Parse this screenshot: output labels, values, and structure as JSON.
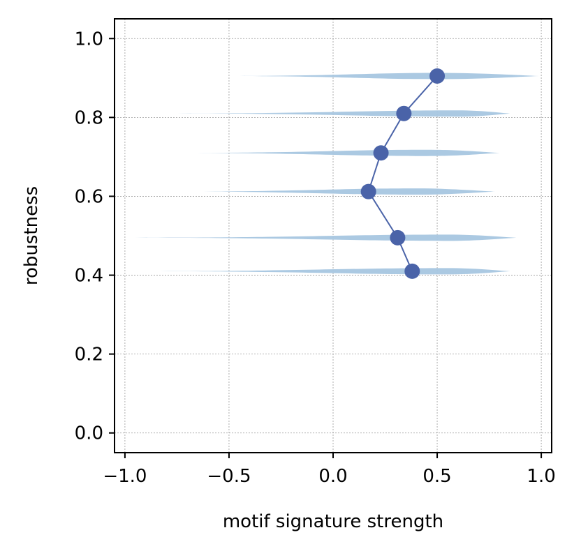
{
  "chart_data": {
    "type": "line",
    "title": "",
    "xlabel": "motif signature strength",
    "ylabel": "robustness",
    "xlim": [
      -1.05,
      1.05
    ],
    "ylim": [
      -0.05,
      1.05
    ],
    "xticks": [
      -1.0,
      -0.5,
      0.0,
      0.5,
      1.0
    ],
    "xtick_labels": [
      "−1.0",
      "−0.5",
      "0.0",
      "0.5",
      "1.0"
    ],
    "yticks": [
      0.0,
      0.2,
      0.4,
      0.6,
      0.8,
      1.0
    ],
    "ytick_labels": [
      "0.0",
      "0.2",
      "0.4",
      "0.6",
      "0.8",
      "1.0"
    ],
    "grid": true,
    "series": [
      {
        "marker": "circle",
        "color": "#4a63a8",
        "points": [
          {
            "x": 0.38,
            "y": 0.41
          },
          {
            "x": 0.31,
            "y": 0.495
          },
          {
            "x": 0.17,
            "y": 0.612
          },
          {
            "x": 0.23,
            "y": 0.71
          },
          {
            "x": 0.34,
            "y": 0.81
          },
          {
            "x": 0.5,
            "y": 0.905
          }
        ]
      }
    ],
    "violins": {
      "color": "#a7c6e0",
      "items": [
        {
          "y": 0.41,
          "min": -0.93,
          "max": 0.85,
          "mode": 0.55
        },
        {
          "y": 0.495,
          "min": -0.95,
          "max": 0.88,
          "mode": 0.55
        },
        {
          "y": 0.612,
          "min": -0.75,
          "max": 0.78,
          "mode": 0.4
        },
        {
          "y": 0.71,
          "min": -0.75,
          "max": 0.8,
          "mode": 0.45
        },
        {
          "y": 0.81,
          "min": -0.75,
          "max": 0.85,
          "mode": 0.6
        },
        {
          "y": 0.905,
          "min": -0.5,
          "max": 0.99,
          "mode": 0.5
        }
      ]
    }
  }
}
